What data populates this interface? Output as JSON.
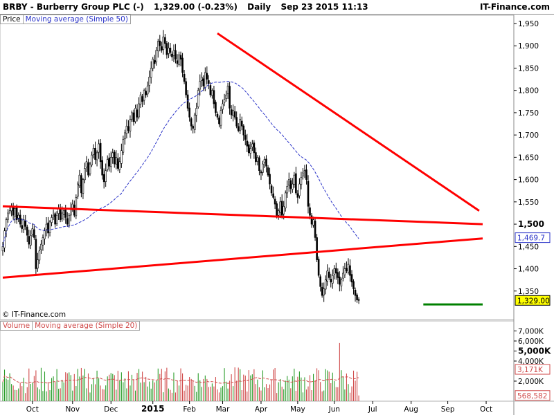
{
  "title_bar": {
    "instrument": "BRBY - Burberry Group PLC (-)",
    "quote": "1,329.00 (-0.23%)",
    "period": "Daily",
    "datetime": "Sep 23 2015 11:13",
    "brand": "IT-Finance.com"
  },
  "price_panel": {
    "legend": {
      "price": "Price",
      "moving_average": "Moving average (Simple 50)"
    },
    "copyright": "© IT-Finance.com"
  },
  "volume_panel": {
    "legend": {
      "volume": "Volume",
      "moving_average": "Moving average (Simple 20)"
    }
  },
  "chart_data": [
    {
      "type": "candlestick",
      "ylim": [
        1300,
        1975
      ],
      "ticks": [
        {
          "value": 1350,
          "label": "1,350"
        },
        {
          "value": 1400,
          "label": "1,400"
        },
        {
          "value": 1450,
          "label": "1,450"
        },
        {
          "value": 1500,
          "label": "1,500",
          "bold": true
        },
        {
          "value": 1550,
          "label": "1,550"
        },
        {
          "value": 1600,
          "label": "1,600"
        },
        {
          "value": 1650,
          "label": "1,650"
        },
        {
          "value": 1700,
          "label": "1,700"
        },
        {
          "value": 1750,
          "label": "1,750"
        },
        {
          "value": 1800,
          "label": "1,800"
        },
        {
          "value": 1850,
          "label": "1,850"
        },
        {
          "value": 1900,
          "label": "1,900"
        },
        {
          "value": 1950,
          "label": "1,950"
        }
      ],
      "x_labels": [
        {
          "label": "Oct",
          "day": 17
        },
        {
          "label": "Nov",
          "day": 40
        },
        {
          "label": "Dec",
          "day": 62
        },
        {
          "label": "2015",
          "day": 86,
          "bold": true
        },
        {
          "label": "Feb",
          "day": 107
        },
        {
          "label": "Mar",
          "day": 126
        },
        {
          "label": "Apr",
          "day": 148
        },
        {
          "label": "May",
          "day": 169
        },
        {
          "label": "Jun",
          "day": 190
        },
        {
          "label": "Jul",
          "day": 212
        },
        {
          "label": "Aug",
          "day": 234
        },
        {
          "label": "Sep",
          "day": 255
        },
        {
          "label": "Oct",
          "day": 277
        }
      ],
      "closes": [
        1450,
        1485,
        1510,
        1525,
        1530,
        1540,
        1520,
        1535,
        1510,
        1520,
        1500,
        1490,
        1510,
        1495,
        1475,
        1455,
        1475,
        1490,
        1470,
        1400,
        1420,
        1440,
        1455,
        1470,
        1485,
        1500,
        1480,
        1505,
        1515,
        1520,
        1500,
        1520,
        1535,
        1510,
        1525,
        1530,
        1515,
        1500,
        1520,
        1535,
        1545,
        1520,
        1560,
        1590,
        1610,
        1570,
        1600,
        1625,
        1640,
        1610,
        1635,
        1655,
        1670,
        1645,
        1660,
        1680,
        1640,
        1610,
        1595,
        1620,
        1645,
        1630,
        1650,
        1660,
        1635,
        1650,
        1625,
        1640,
        1665,
        1690,
        1705,
        1720,
        1710,
        1735,
        1750,
        1730,
        1760,
        1740,
        1770,
        1790,
        1775,
        1800,
        1790,
        1810,
        1830,
        1850,
        1870,
        1860,
        1890,
        1910,
        1900,
        1890,
        1920,
        1905,
        1880,
        1895,
        1885,
        1875,
        1890,
        1870,
        1860,
        1880,
        1870,
        1840,
        1820,
        1790,
        1760,
        1740,
        1720,
        1715,
        1745,
        1760,
        1800,
        1820,
        1830,
        1810,
        1840,
        1825,
        1815,
        1790,
        1800,
        1770,
        1750,
        1740,
        1725,
        1755,
        1770,
        1780,
        1790,
        1810,
        1760,
        1745,
        1755,
        1740,
        1720,
        1710,
        1735,
        1720,
        1700,
        1690,
        1675,
        1660,
        1670,
        1680,
        1660,
        1640,
        1650,
        1620,
        1615,
        1635,
        1645,
        1630,
        1610,
        1590,
        1570,
        1560,
        1545,
        1520,
        1530,
        1550,
        1520,
        1540,
        1570,
        1585,
        1600,
        1580,
        1590,
        1610,
        1570,
        1560,
        1590,
        1605,
        1615,
        1620,
        1600,
        1540,
        1520,
        1500,
        1510,
        1470,
        1420,
        1385,
        1360,
        1340,
        1355,
        1375,
        1395,
        1380,
        1370,
        1385,
        1400,
        1390,
        1380,
        1365,
        1375,
        1390,
        1400,
        1395,
        1410,
        1385,
        1370,
        1355,
        1340,
        1330,
        1329
      ],
      "last_value_labels": [
        {
          "value": 1469.7,
          "label": "1,469.7",
          "color": "#2a33c8"
        },
        {
          "value": 1329.0,
          "label": "1,329.00",
          "color": "#000000",
          "fill": "#ffff00"
        }
      ],
      "trendlines": [
        {
          "from": {
            "day": 0,
            "value": 1540
          },
          "to": {
            "day": 275,
            "value": 1500
          },
          "color": "#ff0000"
        },
        {
          "from": {
            "day": 0,
            "value": 1380
          },
          "to": {
            "day": 275,
            "value": 1468
          },
          "color": "#ff0000"
        },
        {
          "from": {
            "day": 123,
            "value": 1928
          },
          "to": {
            "day": 273,
            "value": 1530
          },
          "color": "#ff0000"
        },
        {
          "from": {
            "day": 241,
            "value": 1320
          },
          "to": {
            "day": 275,
            "value": 1320
          },
          "color": "#008000"
        }
      ],
      "moving_average": {
        "period": 50,
        "color": "#2a33c8"
      }
    },
    {
      "type": "bar",
      "ylim": [
        0,
        8000000
      ],
      "ticks": [
        {
          "value": 2000000,
          "label": "2,000K"
        },
        {
          "value": 4000000,
          "label": "4,000K"
        },
        {
          "value": 5000000,
          "label": "5,000K",
          "bold": true
        },
        {
          "value": 6000000,
          "label": "6,000K"
        },
        {
          "value": 7000000,
          "label": "7,000K"
        }
      ],
      "last_value_labels": [
        {
          "value": 3171000,
          "label": "3,171K",
          "color": "#d04a4a"
        },
        {
          "value": 568582,
          "label": "568,582",
          "color": "#d04a4a"
        }
      ],
      "up_color": "#2a9d2a",
      "down_color": "#d04a4a",
      "moving_average": {
        "period": 20,
        "color": "#d04a4a"
      }
    }
  ]
}
